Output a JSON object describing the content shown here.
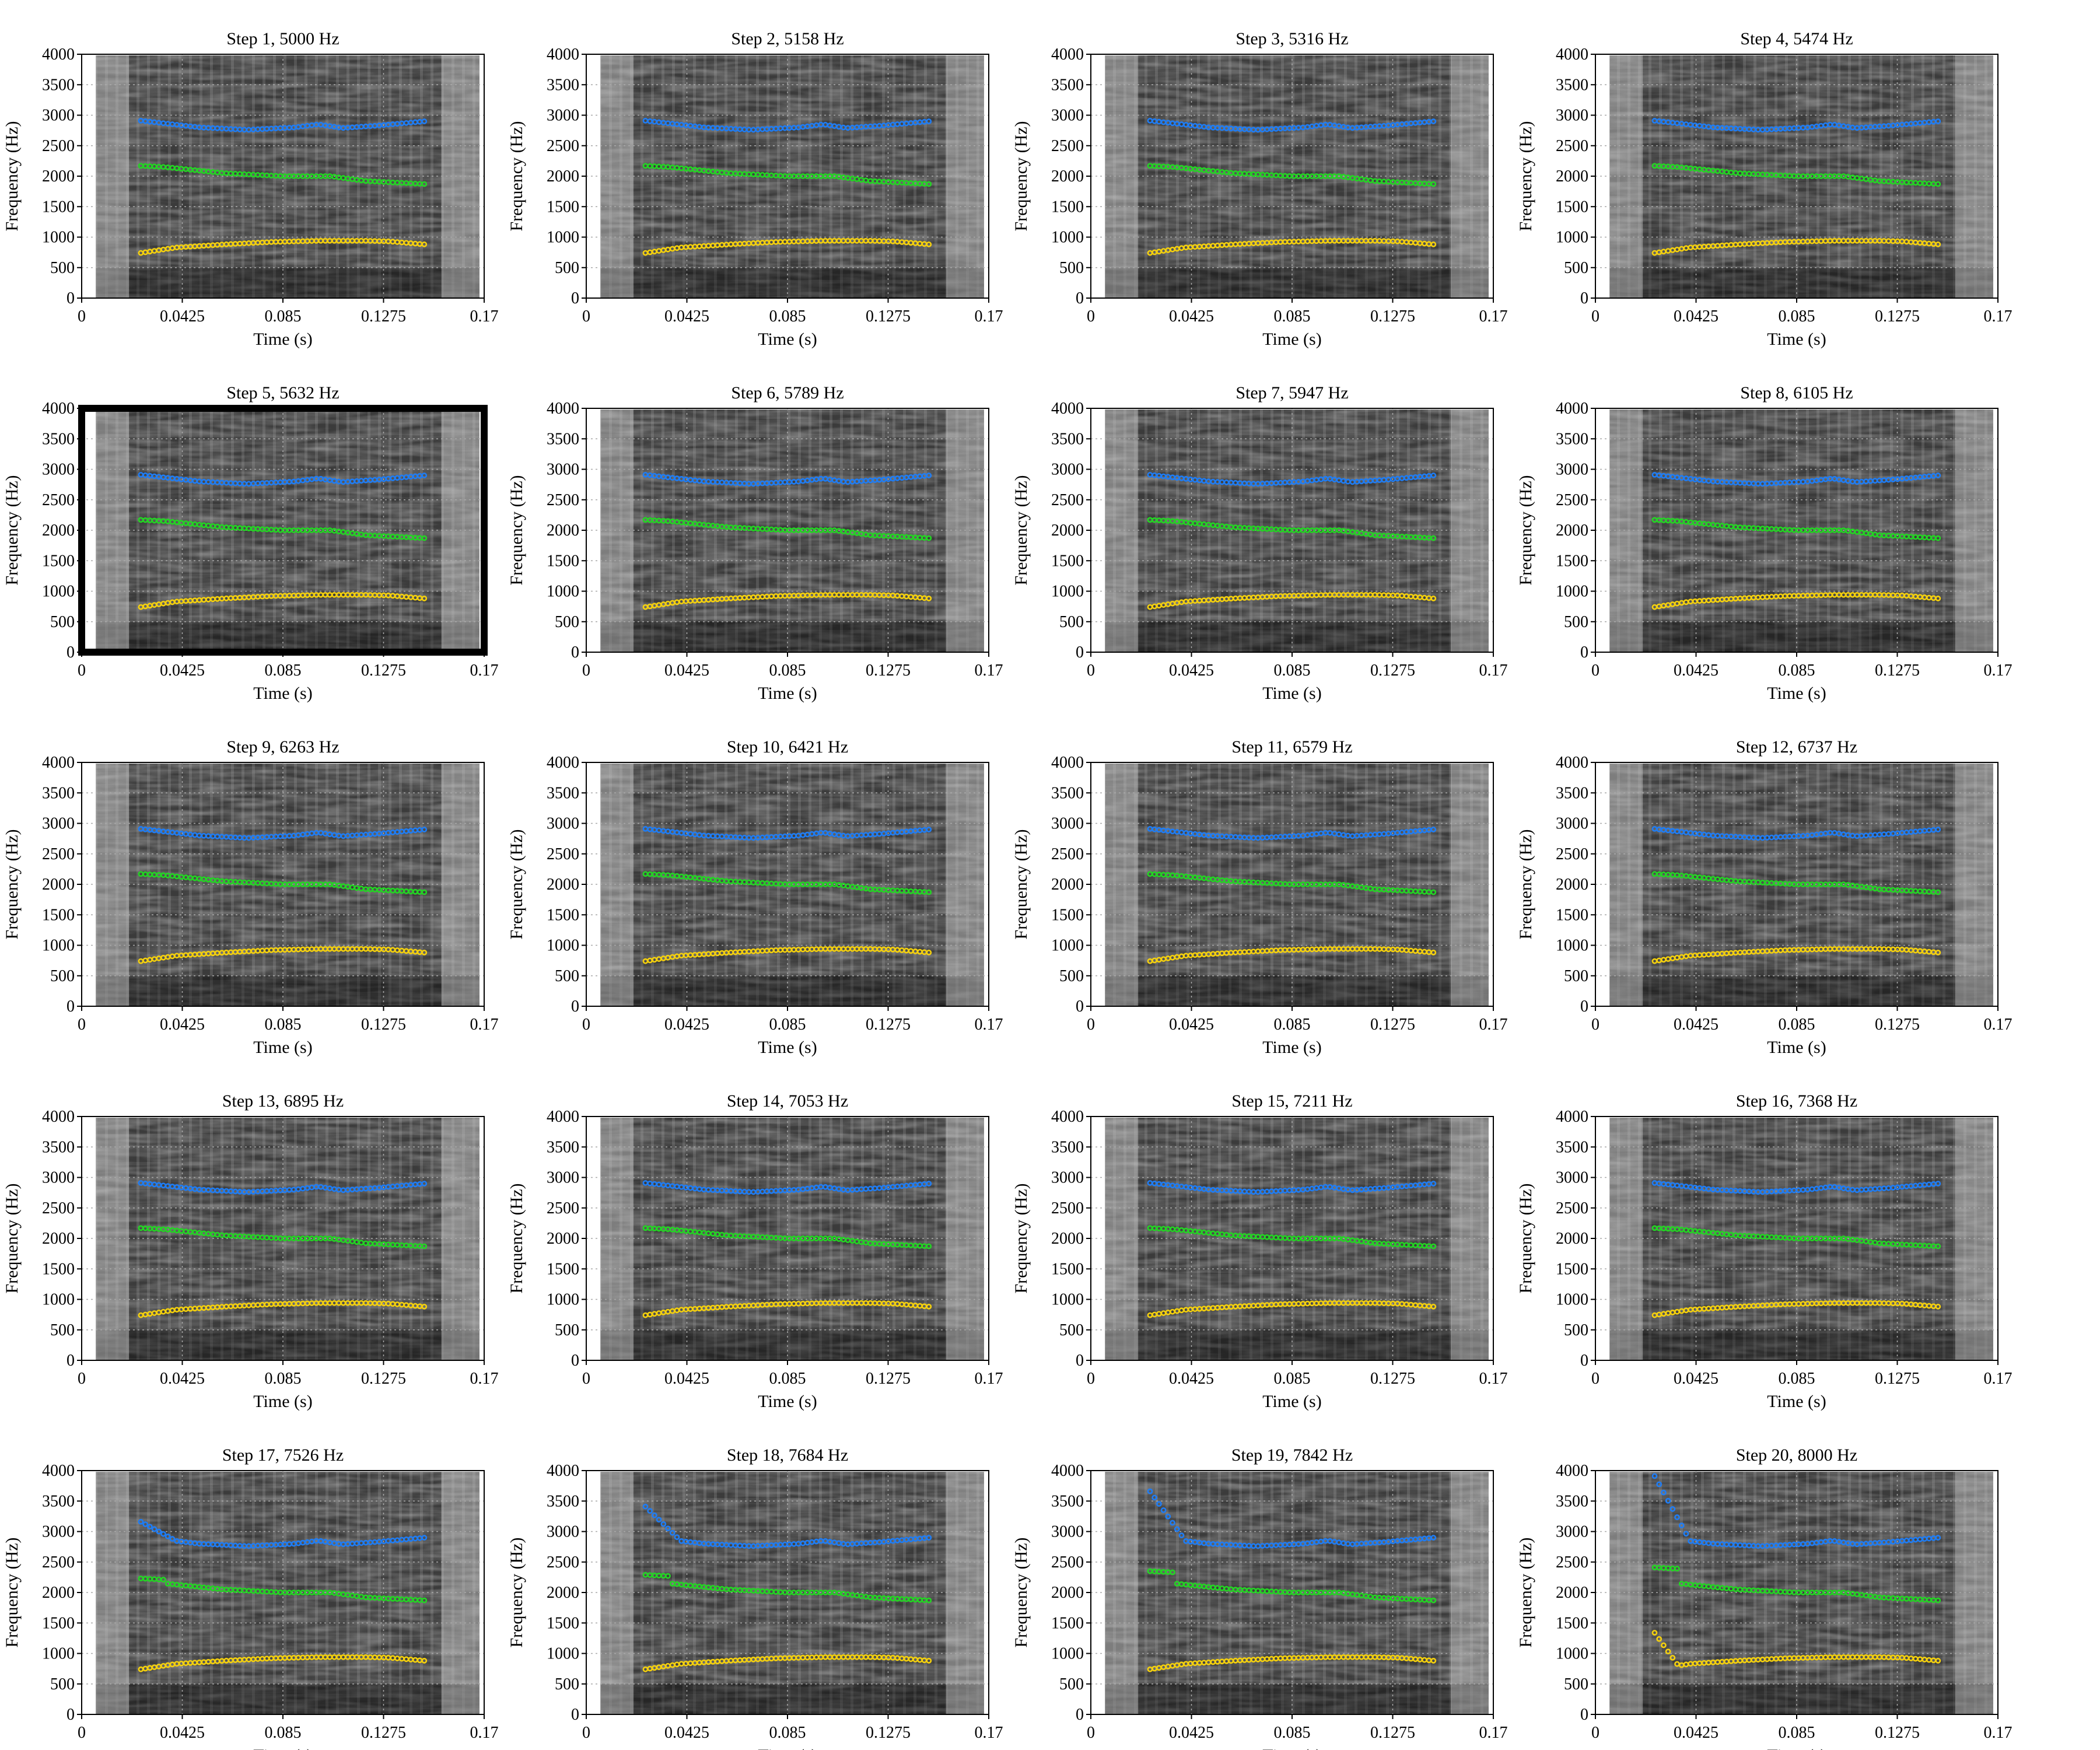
{
  "chart_data": {
    "type": "scatter",
    "layout": "grid 5 rows x 4 columns",
    "xlabel": "Time (s)",
    "ylabel": "Frequency (Hz)",
    "xlim": [
      0,
      0.17
    ],
    "ylim": [
      0,
      4000
    ],
    "xticks": [
      "0",
      "0.0425",
      "0.085",
      "0.1275",
      "0.17"
    ],
    "yticks": [
      "0",
      "500",
      "1000",
      "1500",
      "2000",
      "2500",
      "3000",
      "3500",
      "4000"
    ],
    "grid": "dotted",
    "background": "grayscale spectrogram",
    "highlighted_panel": "Step 5, 5632 Hz",
    "colors": {
      "f1": "#f5d10d",
      "f2": "#23d623",
      "f3": "#1f7df5",
      "f3_alt": "#1fa8e0",
      "f3_ref": "#1a1ad8",
      "f2_ref": "#127a12"
    },
    "panels": [
      {
        "title": "Step 1, 5000 Hz"
      },
      {
        "title": "Step 2, 5158 Hz"
      },
      {
        "title": "Step 3, 5316 Hz"
      },
      {
        "title": "Step 4, 5474 Hz"
      },
      {
        "title": "Step 5, 5632 Hz"
      },
      {
        "title": "Step 6, 5789 Hz"
      },
      {
        "title": "Step 7, 5947 Hz"
      },
      {
        "title": "Step 8, 6105 Hz"
      },
      {
        "title": "Step 9, 6263 Hz"
      },
      {
        "title": "Step 10, 6421 Hz"
      },
      {
        "title": "Step 11, 6579 Hz"
      },
      {
        "title": "Step 12, 6737 Hz"
      },
      {
        "title": "Step 13, 6895 Hz"
      },
      {
        "title": "Step 14, 7053 Hz"
      },
      {
        "title": "Step 15, 7211 Hz"
      },
      {
        "title": "Step 16, 7368 Hz"
      },
      {
        "title": "Step 17, 7526 Hz"
      },
      {
        "title": "Step 18, 7684 Hz"
      },
      {
        "title": "Step 19, 7842 Hz"
      },
      {
        "title": "Step 20, 8000 Hz"
      }
    ],
    "tracks": {
      "f1": {
        "t": [
          0.025,
          0.04,
          0.06,
          0.08,
          0.1,
          0.12,
          0.13,
          0.145
        ],
        "hz": [
          740,
          830,
          880,
          920,
          940,
          940,
          930,
          880
        ]
      },
      "f2": {
        "t": [
          0.025,
          0.035,
          0.06,
          0.085,
          0.105,
          0.12,
          0.13,
          0.145
        ],
        "hz": [
          2170,
          2150,
          2050,
          2000,
          2000,
          1920,
          1900,
          1870
        ]
      },
      "f3": {
        "t": [
          0.025,
          0.05,
          0.07,
          0.09,
          0.1,
          0.11,
          0.125,
          0.145
        ],
        "hz": [
          2910,
          2800,
          2760,
          2800,
          2850,
          2790,
          2830,
          2900
        ]
      }
    }
  }
}
